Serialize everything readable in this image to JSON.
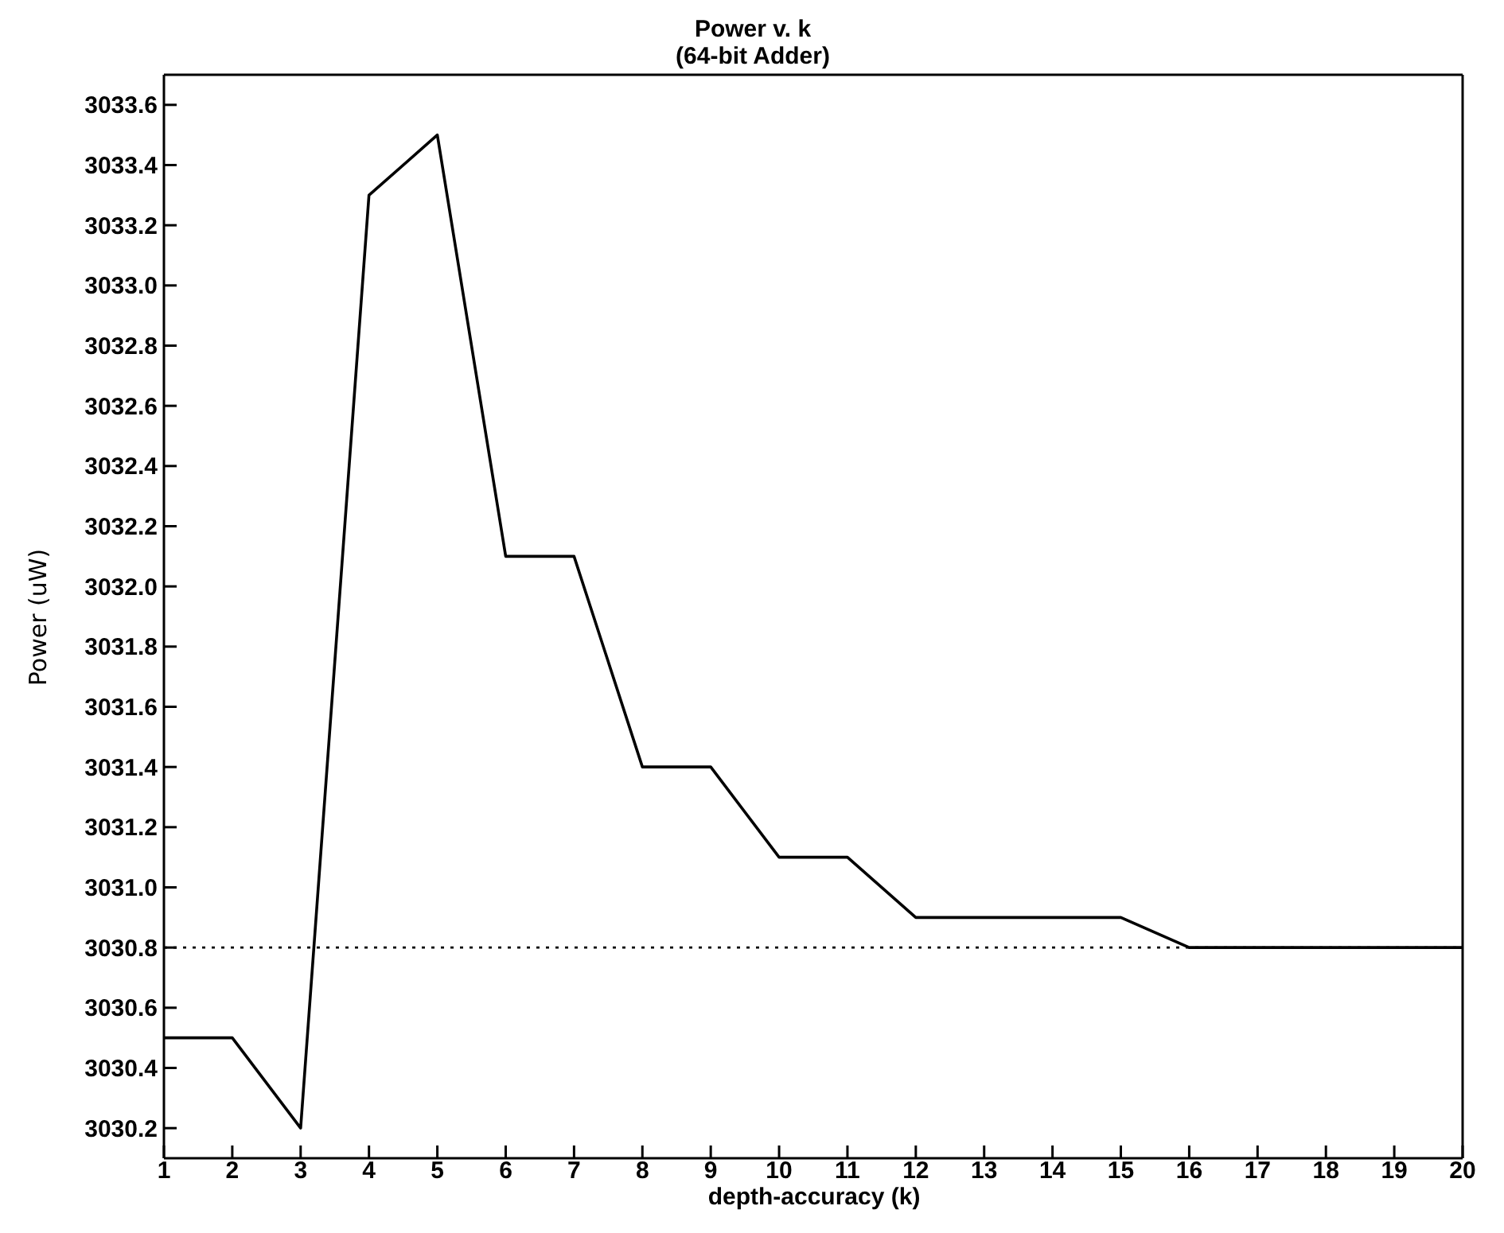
{
  "chart_data": {
    "type": "line",
    "title": "Power v. k\n(64-bit Adder)",
    "xlabel": "depth-accuracy (k)",
    "ylabel": "Power (uW)",
    "x": [
      1,
      2,
      3,
      4,
      5,
      6,
      7,
      8,
      9,
      10,
      11,
      12,
      13,
      14,
      15,
      16,
      17,
      18,
      19,
      20
    ],
    "series": [
      {
        "color": "#000000",
        "values": [
          3030.5,
          3030.5,
          3030.2,
          3033.3,
          3033.5,
          3032.1,
          3032.1,
          3031.4,
          3031.4,
          3031.1,
          3031.1,
          3030.9,
          3030.9,
          3030.9,
          3030.9,
          3030.8,
          3030.8,
          3030.8,
          3030.8,
          3030.8
        ]
      }
    ],
    "xlim": [
      1,
      20
    ],
    "xticks": [
      1,
      2,
      3,
      4,
      5,
      6,
      7,
      8,
      9,
      10,
      11,
      12,
      13,
      14,
      15,
      16,
      17,
      18,
      19,
      20
    ],
    "ylim": [
      3030.1,
      3033.7
    ],
    "yticks": [
      3030.2,
      3030.4,
      3030.6,
      3030.8,
      {
        "value": 3031,
        "label": "3031.0"
      },
      3031.2,
      3031.4,
      3031.6,
      3031.8,
      {
        "value": 3032,
        "label": "3032.0"
      },
      3032.2,
      3032.4,
      3032.6,
      3032.8,
      {
        "value": 3033,
        "label": "3033.0"
      },
      3033.2,
      3033.4,
      3033.6
    ],
    "ref_lines": [
      {
        "axis": "y",
        "value": 3030.8,
        "color": "#000000",
        "line_style": "dotted"
      }
    ],
    "grid": false,
    "legend": false,
    "marker": "none",
    "line_style": "solid"
  }
}
